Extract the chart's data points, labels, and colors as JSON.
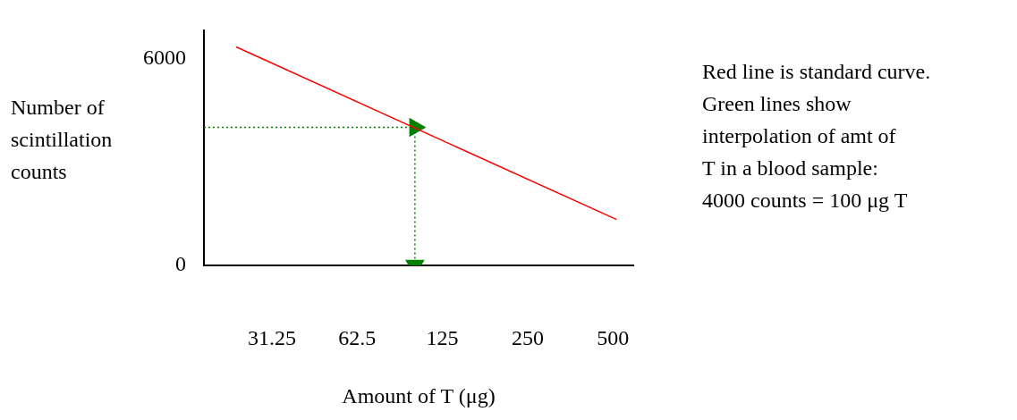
{
  "chart_data": {
    "type": "line",
    "xlabel": "Amount of T (μg)",
    "ylabel": "Number of scintillation counts",
    "annotations": [
      "Red line is standard curve.\nGreen lines show\ninterpolation of amt of\nT in a blood sample:\n4000 counts = 100 μg T"
    ],
    "log": "x",
    "xlim": [
      18,
      590
    ],
    "xticks": [
      31.25,
      62.5,
      125,
      250,
      500
    ],
    "ylim": [
      0,
      6800
    ],
    "yticks": [
      0,
      6000
    ],
    "grid": false,
    "legend": false,
    "series": [
      {
        "color": "#ff0000",
        "x": [
          23.4,
          515
        ],
        "values": [
          6330,
          1330
        ],
        "line_style": "solid",
        "marker": "none"
      },
      {
        "color": "#008000",
        "x": [
          18,
          100
        ],
        "values": [
          4000,
          4000
        ],
        "line_style": "dotted",
        "marker": "triangle"
      },
      {
        "color": "#008000",
        "x": [
          100,
          100
        ],
        "values": [
          4000,
          0
        ],
        "line_style": "dotted",
        "marker": "triangle"
      }
    ]
  }
}
